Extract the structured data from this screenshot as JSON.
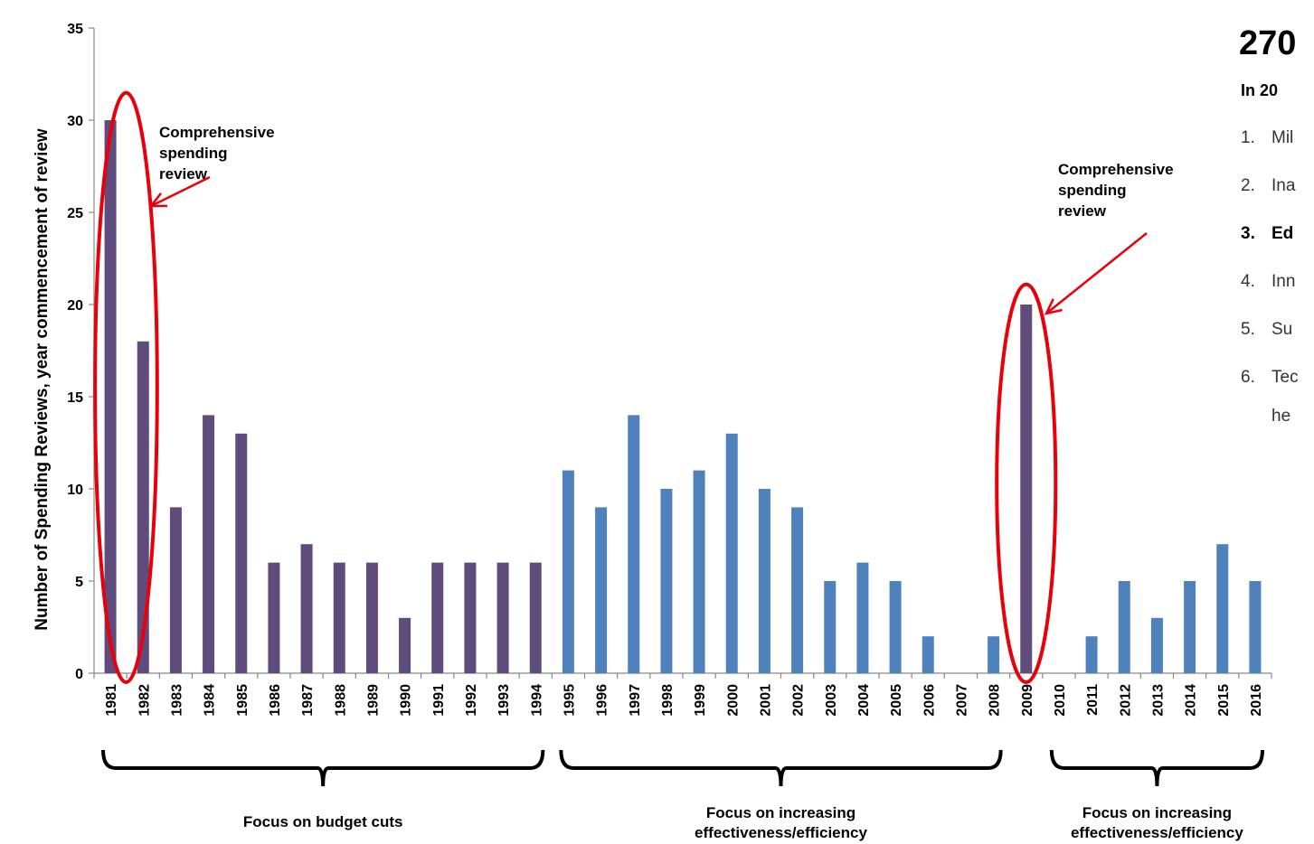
{
  "chart_data": {
    "type": "bar",
    "ylabel": "Number of Spending Reviews, year commencement of review",
    "ylim": [
      0,
      35
    ],
    "yticks": [
      0,
      5,
      10,
      15,
      20,
      25,
      30,
      35
    ],
    "grid": false,
    "colors": {
      "purple": "#5f4b7c",
      "blue": "#4f81bd",
      "highlight": "#e8000b"
    },
    "categories": [
      "1981",
      "1982",
      "1983",
      "1984",
      "1985",
      "1986",
      "1987",
      "1988",
      "1989",
      "1990",
      "1991",
      "1992",
      "1993",
      "1994",
      "1995",
      "1996",
      "1997",
      "1998",
      "1999",
      "2000",
      "2001",
      "2002",
      "2003",
      "2004",
      "2005",
      "2006",
      "2007",
      "2008",
      "2009",
      "2010",
      "2011",
      "2012",
      "2013",
      "2014",
      "2015",
      "2016"
    ],
    "values": [
      30,
      18,
      9,
      14,
      13,
      6,
      7,
      6,
      6,
      3,
      6,
      6,
      6,
      6,
      11,
      9,
      14,
      10,
      11,
      13,
      10,
      9,
      5,
      6,
      5,
      2,
      0,
      2,
      20,
      0,
      2,
      5,
      3,
      5,
      7,
      5
    ],
    "bar_colors": [
      "purple",
      "purple",
      "purple",
      "purple",
      "purple",
      "purple",
      "purple",
      "purple",
      "purple",
      "purple",
      "purple",
      "purple",
      "purple",
      "purple",
      "blue",
      "blue",
      "blue",
      "blue",
      "blue",
      "blue",
      "blue",
      "blue",
      "blue",
      "blue",
      "blue",
      "blue",
      "blue",
      "blue",
      "purple",
      "blue",
      "blue",
      "blue",
      "blue",
      "blue",
      "blue",
      "blue"
    ],
    "annotations": [
      {
        "lines": [
          "Comprehensive",
          "spending",
          "review"
        ],
        "target_year": "1981"
      },
      {
        "lines": [
          "Comprehensive",
          "spending",
          "review"
        ],
        "target_year": "2009"
      }
    ],
    "periods": [
      {
        "from": "1981",
        "to": "1994",
        "label_lines": [
          "Focus on budget cuts"
        ]
      },
      {
        "from": "1995",
        "to": "2008",
        "label_lines": [
          "Focus on increasing",
          "effectiveness/efficiency"
        ]
      },
      {
        "from": "2010",
        "to": "2016",
        "label_lines": [
          "Focus on increasing",
          "effectiveness/efficiency"
        ]
      }
    ]
  },
  "side_panel": {
    "title": "270",
    "subtitle": "In 20",
    "items": [
      {
        "num": "1.",
        "text": "Mil",
        "bold": false
      },
      {
        "num": "2.",
        "text": "Ina",
        "bold": false
      },
      {
        "num": "3.",
        "text": "Ed",
        "bold": true
      },
      {
        "num": "4.",
        "text": "Inn",
        "bold": false
      },
      {
        "num": "5.",
        "text": "Su",
        "bold": false
      },
      {
        "num": "6.",
        "text": "Tec",
        "bold": false
      }
    ],
    "continuation": "he"
  }
}
